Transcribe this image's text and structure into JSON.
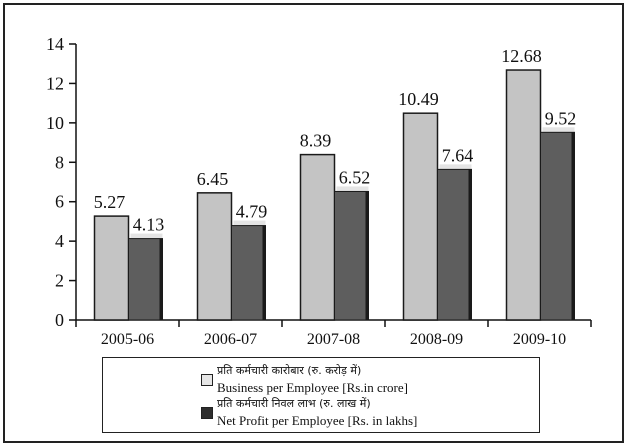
{
  "chart_data": {
    "type": "bar",
    "categories": [
      "2005-06",
      "2006-07",
      "2007-08",
      "2008-09",
      "2009-10"
    ],
    "series": [
      {
        "name": "Business per Employee [Rs.in crore]",
        "name_hi": "प्रति कर्मचारी कारोबार (रु. करोड़ में)",
        "values": [
          5.27,
          6.45,
          8.39,
          10.49,
          12.68
        ],
        "labels": [
          "5.27",
          "6.45",
          "8.39",
          "10.49",
          "12.68"
        ],
        "color": "#c4c4c4"
      },
      {
        "name": "Net Profit per Employee [Rs. in lakhs]",
        "name_hi": "प्रति कर्मचारी निवल लाभ (रु. लाख में)",
        "values": [
          4.13,
          4.79,
          6.52,
          7.64,
          9.52
        ],
        "labels": [
          "4.13",
          "4.79",
          "6.52",
          "7.64",
          "9.52"
        ],
        "color": "#5e5e5e"
      }
    ],
    "yticks": [
      "0",
      "2",
      "4",
      "6",
      "8",
      "10",
      "12",
      "14"
    ],
    "ylim": [
      0,
      14
    ],
    "title": "",
    "xlabel": "",
    "ylabel": "",
    "grid": false,
    "legend_position": "bottom-center"
  }
}
